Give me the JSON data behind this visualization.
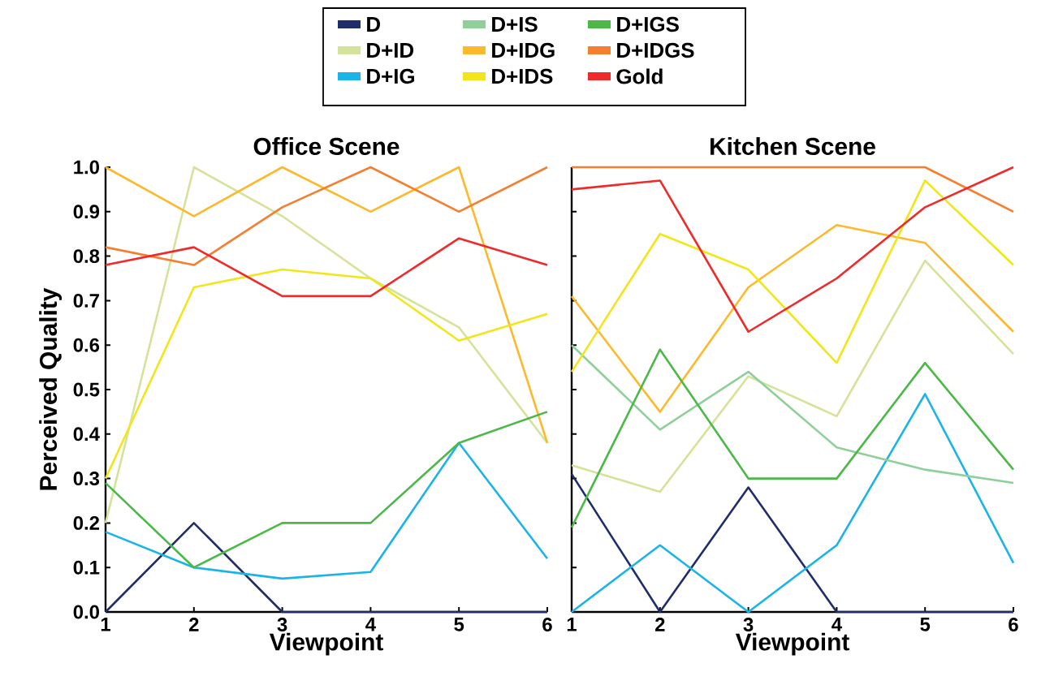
{
  "chart_data": [
    {
      "type": "line",
      "title": "Office Scene",
      "xlabel": "Viewpoint",
      "ylabel": "Perceived Quality",
      "x": [
        1,
        2,
        3,
        4,
        5,
        6
      ],
      "xlim": [
        1,
        6
      ],
      "ylim": [
        0,
        1
      ],
      "xticks": [
        1,
        2,
        3,
        4,
        5,
        6
      ],
      "yticks": [
        {
          "value": 0,
          "label": "0.0"
        },
        {
          "value": 0.1,
          "label": "0.1"
        },
        {
          "value": 0.2,
          "label": "0.2"
        },
        {
          "value": 0.3,
          "label": "0.3"
        },
        {
          "value": 0.4,
          "label": "0.4"
        },
        {
          "value": 0.5,
          "label": "0.5"
        },
        {
          "value": 0.6,
          "label": "0.6"
        },
        {
          "value": 0.7,
          "label": "0.7"
        },
        {
          "value": 0.8,
          "label": "0.8"
        },
        {
          "value": 0.9,
          "label": "0.9"
        },
        {
          "value": 1,
          "label": "1.0"
        }
      ],
      "grid": false,
      "legend": "top",
      "line_style": "solid",
      "series": [
        {
          "name": "D",
          "color": "#1f2d6b",
          "values": [
            0,
            0.2,
            0,
            0,
            0,
            0
          ]
        },
        {
          "name": "D+ID",
          "color": "#d4e39a",
          "values": [
            0.2,
            1.0,
            0.89,
            0.75,
            0.64,
            0.38
          ]
        },
        {
          "name": "D+IG",
          "color": "#1ab4e8",
          "values": [
            0.18,
            0.1,
            0.075,
            0.09,
            0.38,
            0.12
          ]
        },
        {
          "name": "D+IS",
          "color": "#8fd09a",
          "values": [
            null,
            null,
            null,
            null,
            null,
            null
          ]
        },
        {
          "name": "D+IDG",
          "color": "#fdb92c",
          "values": [
            1.0,
            0.89,
            1.0,
            0.9,
            1.0,
            0.38
          ]
        },
        {
          "name": "D+IDS",
          "color": "#f2e61b",
          "values": [
            0.3,
            0.73,
            0.77,
            0.75,
            0.61,
            0.67
          ]
        },
        {
          "name": "D+IGS",
          "color": "#4cb848",
          "values": [
            0.29,
            0.1,
            0.2,
            0.2,
            0.38,
            0.45
          ]
        },
        {
          "name": "D+IDGS",
          "color": "#f47f30",
          "values": [
            0.82,
            0.78,
            0.91,
            1.0,
            0.9,
            1.0
          ]
        },
        {
          "name": "Gold",
          "color": "#ee2a2a",
          "values": [
            0.78,
            0.82,
            0.71,
            0.71,
            0.84,
            0.78
          ]
        }
      ]
    },
    {
      "type": "line",
      "title": "Kitchen Scene",
      "xlabel": "Viewpoint",
      "x": [
        1,
        2,
        3,
        4,
        5,
        6
      ],
      "xlim": [
        1,
        6
      ],
      "ylim": [
        0,
        1
      ],
      "xticks": [
        1,
        2,
        3,
        4,
        5,
        6
      ],
      "yticks": [
        {
          "value": 0,
          "label": null
        },
        {
          "value": 0.1,
          "label": null
        },
        {
          "value": 0.2,
          "label": null
        },
        {
          "value": 0.3,
          "label": null
        },
        {
          "value": 0.4,
          "label": null
        },
        {
          "value": 0.5,
          "label": null
        },
        {
          "value": 0.6,
          "label": null
        },
        {
          "value": 0.7,
          "label": null
        },
        {
          "value": 0.8,
          "label": null
        },
        {
          "value": 0.9,
          "label": null
        },
        {
          "value": 1,
          "label": null
        }
      ],
      "tick_labels": "x",
      "grid": false,
      "line_style": "solid",
      "series": [
        {
          "color": "#1f2d6b",
          "values": [
            0.31,
            0,
            0.28,
            0,
            0,
            0
          ]
        },
        {
          "color": "#d4e39a",
          "values": [
            0.33,
            0.27,
            0.53,
            0.44,
            0.79,
            0.58
          ]
        },
        {
          "color": "#1ab4e8",
          "values": [
            0,
            0.15,
            0,
            0.15,
            0.49,
            0.11
          ]
        },
        {
          "color": "#8fd09a",
          "values": [
            0.6,
            0.41,
            0.54,
            0.37,
            0.32,
            0.29
          ]
        },
        {
          "color": "#fdb92c",
          "values": [
            0.71,
            0.45,
            0.73,
            0.87,
            0.83,
            0.63
          ]
        },
        {
          "color": "#f2e61b",
          "values": [
            0.54,
            0.85,
            0.77,
            0.56,
            0.97,
            0.78
          ]
        },
        {
          "color": "#4cb848",
          "values": [
            0.19,
            0.59,
            0.3,
            0.3,
            0.56,
            0.32
          ]
        },
        {
          "color": "#f47f30",
          "values": [
            1.0,
            1.0,
            1.0,
            1.0,
            1.0,
            0.9
          ]
        },
        {
          "color": "#ee2a2a",
          "values": [
            0.95,
            0.97,
            0.63,
            0.75,
            0.91,
            1.0
          ]
        }
      ]
    }
  ]
}
